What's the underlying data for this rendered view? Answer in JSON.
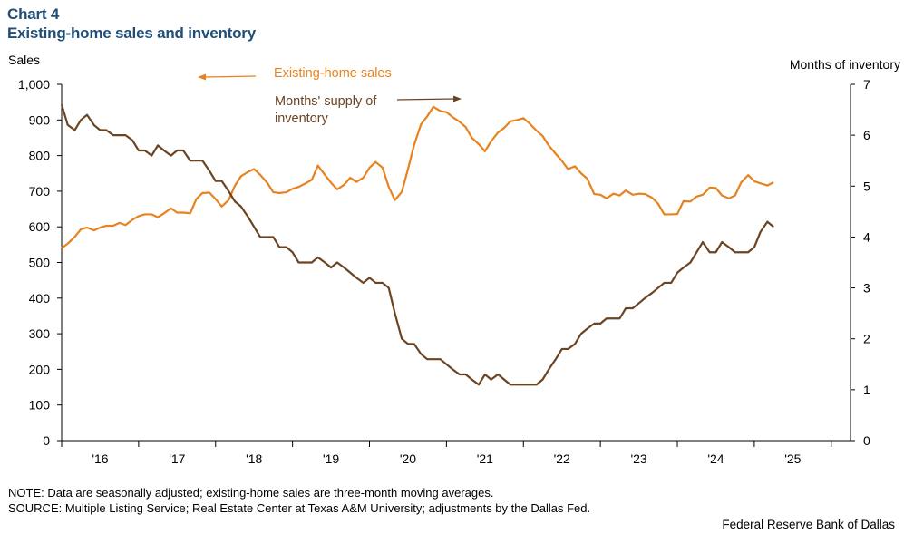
{
  "header": {
    "chart_number": "Chart 4",
    "title": "Existing-home sales and inventory"
  },
  "footer": {
    "note": "NOTE: Data are seasonally adjusted; existing-home sales are three-month moving averages.",
    "source": "SOURCE: Multiple Listing Service; Real Estate Center at Texas A&M University; adjustments by the Dallas Fed.",
    "credit": "Federal Reserve Bank of Dallas"
  },
  "colors": {
    "sales": "#e8821e",
    "inventory": "#6b4423",
    "axis": "#000000"
  },
  "chart_data": {
    "type": "line",
    "title": "Existing-home sales and inventory",
    "ylabel_left": "Sales",
    "ylabel_right": "Months of inventory",
    "ylim_left": [
      0,
      1000
    ],
    "ylim_right": [
      0,
      7
    ],
    "yticks_left": [
      "0",
      "100",
      "200",
      "300",
      "400",
      "500",
      "600",
      "700",
      "800",
      "900",
      "1,000"
    ],
    "yticks_right": [
      "0",
      "1",
      "2",
      "3",
      "4",
      "5",
      "6",
      "7"
    ],
    "xlim": [
      2015.5,
      2025.75
    ],
    "xticks": [
      {
        "label": "'16",
        "x": 2016.0
      },
      {
        "label": "'17",
        "x": 2017.0
      },
      {
        "label": "'18",
        "x": 2018.0
      },
      {
        "label": "'19",
        "x": 2019.0
      },
      {
        "label": "'20",
        "x": 2020.0
      },
      {
        "label": "'21",
        "x": 2021.0
      },
      {
        "label": "'22",
        "x": 2022.0
      },
      {
        "label": "'23",
        "x": 2023.0
      },
      {
        "label": "'24",
        "x": 2024.0
      },
      {
        "label": "'25",
        "x": 2025.0
      }
    ],
    "annotations": [
      {
        "text": "Existing-home sales",
        "series": "sales",
        "arrow": "left"
      },
      {
        "text_lines": [
          "Months' supply of",
          "inventory"
        ],
        "series": "inventory",
        "arrow": "right"
      }
    ],
    "series": [
      {
        "name": "Existing-home sales",
        "key": "sales",
        "axis": "left",
        "points": [
          [
            2015.5,
            540
          ],
          [
            2015.58,
            553
          ],
          [
            2015.67,
            572
          ],
          [
            2015.75,
            593
          ],
          [
            2015.83,
            598
          ],
          [
            2015.92,
            590
          ],
          [
            2016.0,
            598
          ],
          [
            2016.08,
            603
          ],
          [
            2016.17,
            603
          ],
          [
            2016.25,
            611
          ],
          [
            2016.33,
            605
          ],
          [
            2016.42,
            620
          ],
          [
            2016.5,
            630
          ],
          [
            2016.58,
            635
          ],
          [
            2016.67,
            635
          ],
          [
            2016.75,
            627
          ],
          [
            2016.83,
            638
          ],
          [
            2016.92,
            652
          ],
          [
            2017.0,
            640
          ],
          [
            2017.08,
            640
          ],
          [
            2017.17,
            638
          ],
          [
            2017.25,
            678
          ],
          [
            2017.33,
            695
          ],
          [
            2017.42,
            696
          ],
          [
            2017.5,
            678
          ],
          [
            2017.58,
            657
          ],
          [
            2017.67,
            675
          ],
          [
            2017.75,
            715
          ],
          [
            2017.83,
            742
          ],
          [
            2017.92,
            754
          ],
          [
            2018.0,
            762
          ],
          [
            2018.08,
            746
          ],
          [
            2018.17,
            724
          ],
          [
            2018.25,
            697
          ],
          [
            2018.33,
            695
          ],
          [
            2018.42,
            697
          ],
          [
            2018.5,
            707
          ],
          [
            2018.58,
            712
          ],
          [
            2018.67,
            722
          ],
          [
            2018.75,
            732
          ],
          [
            2018.83,
            772
          ],
          [
            2018.92,
            746
          ],
          [
            2019.0,
            724
          ],
          [
            2019.08,
            705
          ],
          [
            2019.17,
            718
          ],
          [
            2019.25,
            738
          ],
          [
            2019.33,
            726
          ],
          [
            2019.42,
            738
          ],
          [
            2019.5,
            766
          ],
          [
            2019.58,
            782
          ],
          [
            2019.67,
            766
          ],
          [
            2019.75,
            712
          ],
          [
            2019.83,
            675
          ],
          [
            2019.92,
            698
          ],
          [
            2020.0,
            762
          ],
          [
            2020.08,
            830
          ],
          [
            2020.17,
            888
          ],
          [
            2020.25,
            910
          ],
          [
            2020.33,
            937
          ],
          [
            2020.42,
            925
          ],
          [
            2020.5,
            922
          ],
          [
            2020.58,
            908
          ],
          [
            2020.67,
            895
          ],
          [
            2020.75,
            880
          ],
          [
            2020.83,
            850
          ],
          [
            2020.92,
            832
          ],
          [
            2021.0,
            812
          ],
          [
            2021.08,
            840
          ],
          [
            2021.17,
            865
          ],
          [
            2021.25,
            878
          ],
          [
            2021.33,
            896
          ],
          [
            2021.42,
            900
          ],
          [
            2021.5,
            905
          ],
          [
            2021.58,
            890
          ],
          [
            2021.67,
            870
          ],
          [
            2021.75,
            855
          ],
          [
            2021.83,
            828
          ],
          [
            2021.92,
            805
          ],
          [
            2022.0,
            785
          ],
          [
            2022.08,
            762
          ],
          [
            2022.17,
            770
          ],
          [
            2022.25,
            750
          ],
          [
            2022.33,
            735
          ],
          [
            2022.42,
            692
          ],
          [
            2022.5,
            690
          ],
          [
            2022.58,
            680
          ],
          [
            2022.67,
            693
          ],
          [
            2022.75,
            688
          ],
          [
            2022.83,
            702
          ],
          [
            2022.92,
            690
          ],
          [
            2023.0,
            693
          ],
          [
            2023.08,
            692
          ],
          [
            2023.17,
            682
          ],
          [
            2023.25,
            665
          ],
          [
            2023.33,
            635
          ],
          [
            2023.42,
            635
          ],
          [
            2023.5,
            636
          ],
          [
            2023.58,
            672
          ],
          [
            2023.67,
            671
          ],
          [
            2023.75,
            685
          ],
          [
            2023.83,
            690
          ],
          [
            2023.92,
            710
          ],
          [
            2024.0,
            709
          ],
          [
            2024.08,
            688
          ],
          [
            2024.17,
            680
          ],
          [
            2024.25,
            688
          ],
          [
            2024.33,
            725
          ],
          [
            2024.42,
            745
          ],
          [
            2024.5,
            728
          ],
          [
            2024.58,
            722
          ],
          [
            2024.67,
            716
          ],
          [
            2024.75,
            725
          ]
        ]
      },
      {
        "name": "Months' supply of inventory",
        "key": "inventory",
        "axis": "right",
        "points": [
          [
            2015.5,
            6.6
          ],
          [
            2015.58,
            6.2
          ],
          [
            2015.67,
            6.1
          ],
          [
            2015.75,
            6.3
          ],
          [
            2015.83,
            6.4
          ],
          [
            2015.92,
            6.2
          ],
          [
            2016.0,
            6.1
          ],
          [
            2016.08,
            6.1
          ],
          [
            2016.17,
            6.0
          ],
          [
            2016.25,
            6.0
          ],
          [
            2016.33,
            6.0
          ],
          [
            2016.42,
            5.9
          ],
          [
            2016.5,
            5.7
          ],
          [
            2016.58,
            5.7
          ],
          [
            2016.67,
            5.6
          ],
          [
            2016.75,
            5.8
          ],
          [
            2016.83,
            5.7
          ],
          [
            2016.92,
            5.6
          ],
          [
            2017.0,
            5.7
          ],
          [
            2017.08,
            5.7
          ],
          [
            2017.17,
            5.5
          ],
          [
            2017.25,
            5.5
          ],
          [
            2017.33,
            5.5
          ],
          [
            2017.42,
            5.3
          ],
          [
            2017.5,
            5.1
          ],
          [
            2017.58,
            5.1
          ],
          [
            2017.67,
            4.9
          ],
          [
            2017.75,
            4.7
          ],
          [
            2017.83,
            4.6
          ],
          [
            2017.92,
            4.4
          ],
          [
            2018.0,
            4.2
          ],
          [
            2018.08,
            4.0
          ],
          [
            2018.17,
            4.0
          ],
          [
            2018.25,
            4.0
          ],
          [
            2018.33,
            3.8
          ],
          [
            2018.42,
            3.8
          ],
          [
            2018.5,
            3.7
          ],
          [
            2018.58,
            3.5
          ],
          [
            2018.67,
            3.5
          ],
          [
            2018.75,
            3.5
          ],
          [
            2018.83,
            3.6
          ],
          [
            2018.92,
            3.5
          ],
          [
            2019.0,
            3.4
          ],
          [
            2019.08,
            3.5
          ],
          [
            2019.17,
            3.4
          ],
          [
            2019.25,
            3.3
          ],
          [
            2019.33,
            3.2
          ],
          [
            2019.42,
            3.1
          ],
          [
            2019.5,
            3.2
          ],
          [
            2019.58,
            3.1
          ],
          [
            2019.67,
            3.1
          ],
          [
            2019.75,
            3.0
          ],
          [
            2019.83,
            2.5
          ],
          [
            2019.92,
            2.0
          ],
          [
            2020.0,
            1.9
          ],
          [
            2020.08,
            1.9
          ],
          [
            2020.17,
            1.7
          ],
          [
            2020.25,
            1.6
          ],
          [
            2020.33,
            1.6
          ],
          [
            2020.42,
            1.6
          ],
          [
            2020.5,
            1.5
          ],
          [
            2020.58,
            1.4
          ],
          [
            2020.67,
            1.3
          ],
          [
            2020.75,
            1.3
          ],
          [
            2020.83,
            1.2
          ],
          [
            2020.92,
            1.1
          ],
          [
            2021.0,
            1.3
          ],
          [
            2021.08,
            1.2
          ],
          [
            2021.17,
            1.3
          ],
          [
            2021.25,
            1.2
          ],
          [
            2021.33,
            1.1
          ],
          [
            2021.42,
            1.1
          ],
          [
            2021.5,
            1.1
          ],
          [
            2021.58,
            1.1
          ],
          [
            2021.67,
            1.1
          ],
          [
            2021.75,
            1.2
          ],
          [
            2021.83,
            1.4
          ],
          [
            2021.92,
            1.6
          ],
          [
            2022.0,
            1.8
          ],
          [
            2022.08,
            1.8
          ],
          [
            2022.17,
            1.9
          ],
          [
            2022.25,
            2.1
          ],
          [
            2022.33,
            2.2
          ],
          [
            2022.42,
            2.3
          ],
          [
            2022.5,
            2.3
          ],
          [
            2022.58,
            2.4
          ],
          [
            2022.67,
            2.4
          ],
          [
            2022.75,
            2.4
          ],
          [
            2022.83,
            2.6
          ],
          [
            2022.92,
            2.6
          ],
          [
            2023.0,
            2.7
          ],
          [
            2023.08,
            2.8
          ],
          [
            2023.17,
            2.9
          ],
          [
            2023.25,
            3.0
          ],
          [
            2023.33,
            3.1
          ],
          [
            2023.42,
            3.1
          ],
          [
            2023.5,
            3.3
          ],
          [
            2023.58,
            3.4
          ],
          [
            2023.67,
            3.5
          ],
          [
            2023.75,
            3.7
          ],
          [
            2023.83,
            3.9
          ],
          [
            2023.92,
            3.7
          ],
          [
            2024.0,
            3.7
          ],
          [
            2024.08,
            3.9
          ],
          [
            2024.17,
            3.8
          ],
          [
            2024.25,
            3.7
          ],
          [
            2024.33,
            3.7
          ],
          [
            2024.42,
            3.7
          ],
          [
            2024.5,
            3.8
          ],
          [
            2024.58,
            4.1
          ],
          [
            2024.67,
            4.3
          ],
          [
            2024.75,
            4.2
          ]
        ]
      }
    ]
  }
}
